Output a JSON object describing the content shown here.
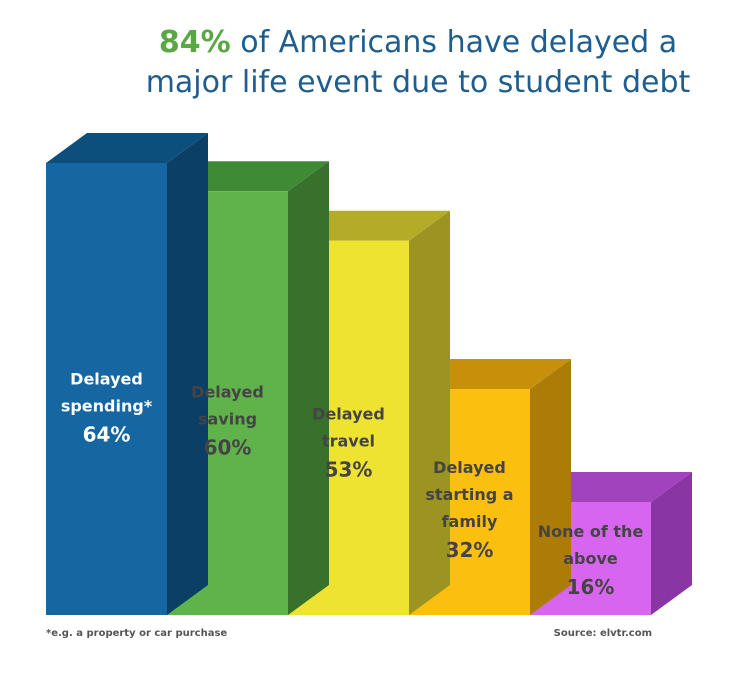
{
  "title": {
    "highlight": "84%",
    "line1_rest": " of Americans have delayed a",
    "line2": "major life event due to student debt"
  },
  "footnote": "*e.g. a property or car purchase",
  "source": "Source: elvtr.com",
  "chart_data": {
    "type": "bar",
    "categories": [
      [
        "Delayed",
        "spending*"
      ],
      [
        "Delayed",
        "saving"
      ],
      [
        "Delayed",
        "travel"
      ],
      [
        "Delayed",
        "starting a",
        "family"
      ],
      [
        "None of the",
        "above"
      ]
    ],
    "values": [
      64,
      60,
      53,
      32,
      16
    ],
    "value_labels": [
      "64%",
      "60%",
      "53%",
      "32%",
      "16%"
    ],
    "colors": {
      "front": [
        "#1566a1",
        "#5fb34a",
        "#efe332",
        "#fbbf10",
        "#d865f0"
      ],
      "top": [
        "#0c4e7c",
        "#3f8a35",
        "#b4ab28",
        "#c88f0b",
        "#a243be"
      ],
      "side": [
        "#0b3f66",
        "#37712c",
        "#9b9420",
        "#ad7c07",
        "#8a35a4"
      ],
      "text": [
        "#ffffff",
        "#444444",
        "#444444",
        "#444444",
        "#444444"
      ]
    },
    "ylim": [
      0,
      64
    ],
    "grid": false,
    "legend": "none"
  }
}
